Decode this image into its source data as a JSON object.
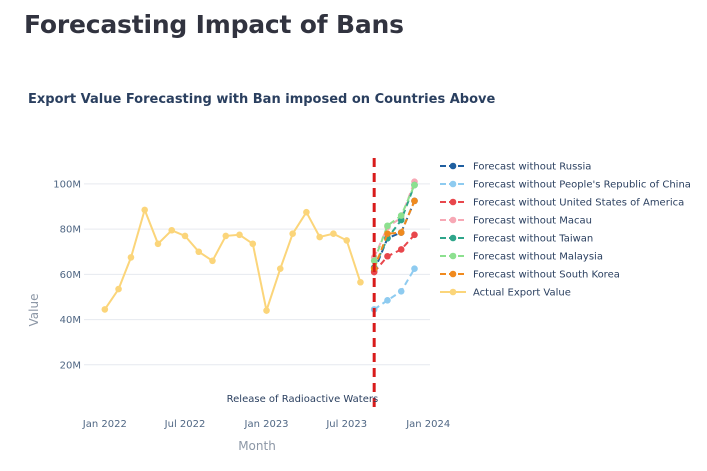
{
  "header": {
    "title": "Forecasting Impact of Bans"
  },
  "chart_data": {
    "type": "line",
    "title": "Export Value Forecasting with Ban imposed on Countries Above",
    "xlabel": "Month",
    "ylabel": "Value",
    "xlim": [
      "2021-11-15",
      "2024-01-05"
    ],
    "ylim": [
      0,
      115000000
    ],
    "x_ticks": [
      "2022-01-01",
      "2022-07-01",
      "2023-01-01",
      "2023-07-01",
      "2024-01-01"
    ],
    "x_tick_labels": [
      "Jan 2022",
      "Jul 2022",
      "Jan 2023",
      "Jul 2023",
      "Jan 2024"
    ],
    "y_ticks": [
      20000000,
      40000000,
      60000000,
      80000000,
      100000000
    ],
    "y_tick_labels": [
      "20M",
      "40M",
      "60M",
      "80M",
      "100M"
    ],
    "grid": "horizontal",
    "legend_position": "right",
    "series": [
      {
        "name": "Forecast without Russia",
        "color": "#1f5fa0",
        "x": [
          "2023-09-01",
          "2023-10-01",
          "2023-11-01",
          "2023-12-01"
        ],
        "values": [
          61500000,
          76000000,
          78500000,
          92500000
        ]
      },
      {
        "name": "Forecast without People's Republic of China",
        "color": "#8ecbf0",
        "x": [
          "2023-09-01",
          "2023-10-01",
          "2023-11-01",
          "2023-12-01"
        ],
        "values": [
          44500000,
          48500000,
          52500000,
          62500000
        ]
      },
      {
        "name": "Forecast without United States of America",
        "color": "#e8474c",
        "x": [
          "2023-09-01",
          "2023-10-01",
          "2023-11-01",
          "2023-12-01"
        ],
        "values": [
          61000000,
          68000000,
          71000000,
          77500000
        ]
      },
      {
        "name": "Forecast without Macau",
        "color": "#f7a8b5",
        "x": [
          "2023-09-01",
          "2023-10-01",
          "2023-11-01",
          "2023-12-01"
        ],
        "values": [
          67500000,
          81000000,
          85000000,
          101000000
        ]
      },
      {
        "name": "Forecast without Taiwan",
        "color": "#2ea58a",
        "x": [
          "2023-09-01",
          "2023-10-01",
          "2023-11-01",
          "2023-12-01"
        ],
        "values": [
          63000000,
          76000000,
          84000000,
          99500000
        ]
      },
      {
        "name": "Forecast without Malaysia",
        "color": "#8ce08f",
        "x": [
          "2023-09-01",
          "2023-10-01",
          "2023-11-01",
          "2023-12-01"
        ],
        "values": [
          66000000,
          81500000,
          86000000,
          99500000
        ]
      },
      {
        "name": "Forecast without South Korea",
        "color": "#f08a1e",
        "x": [
          "2023-09-01",
          "2023-10-01",
          "2023-11-01",
          "2023-12-01"
        ],
        "values": [
          62500000,
          78000000,
          78500000,
          92500000
        ]
      },
      {
        "name": "Actual Export Value",
        "color": "#fbd57a",
        "x": [
          "2022-01-01",
          "2022-02-01",
          "2022-03-01",
          "2022-04-01",
          "2022-05-01",
          "2022-06-01",
          "2022-07-01",
          "2022-08-01",
          "2022-09-01",
          "2022-10-01",
          "2022-11-01",
          "2022-12-01",
          "2023-01-01",
          "2023-02-01",
          "2023-03-01",
          "2023-04-01",
          "2023-05-01",
          "2023-06-01",
          "2023-07-01",
          "2023-08-01"
        ],
        "values": [
          44500000,
          53500000,
          67500000,
          88500000,
          73500000,
          79500000,
          77000000,
          70000000,
          66000000,
          77000000,
          77500000,
          73500000,
          44000000,
          62500000,
          78000000,
          87500000,
          76500000,
          78000000,
          75000000,
          56500000
        ]
      }
    ],
    "annotation": {
      "text": "Release of Radioactive Waters",
      "x": "2023-09-01",
      "line_color": "#d81b1b"
    }
  }
}
